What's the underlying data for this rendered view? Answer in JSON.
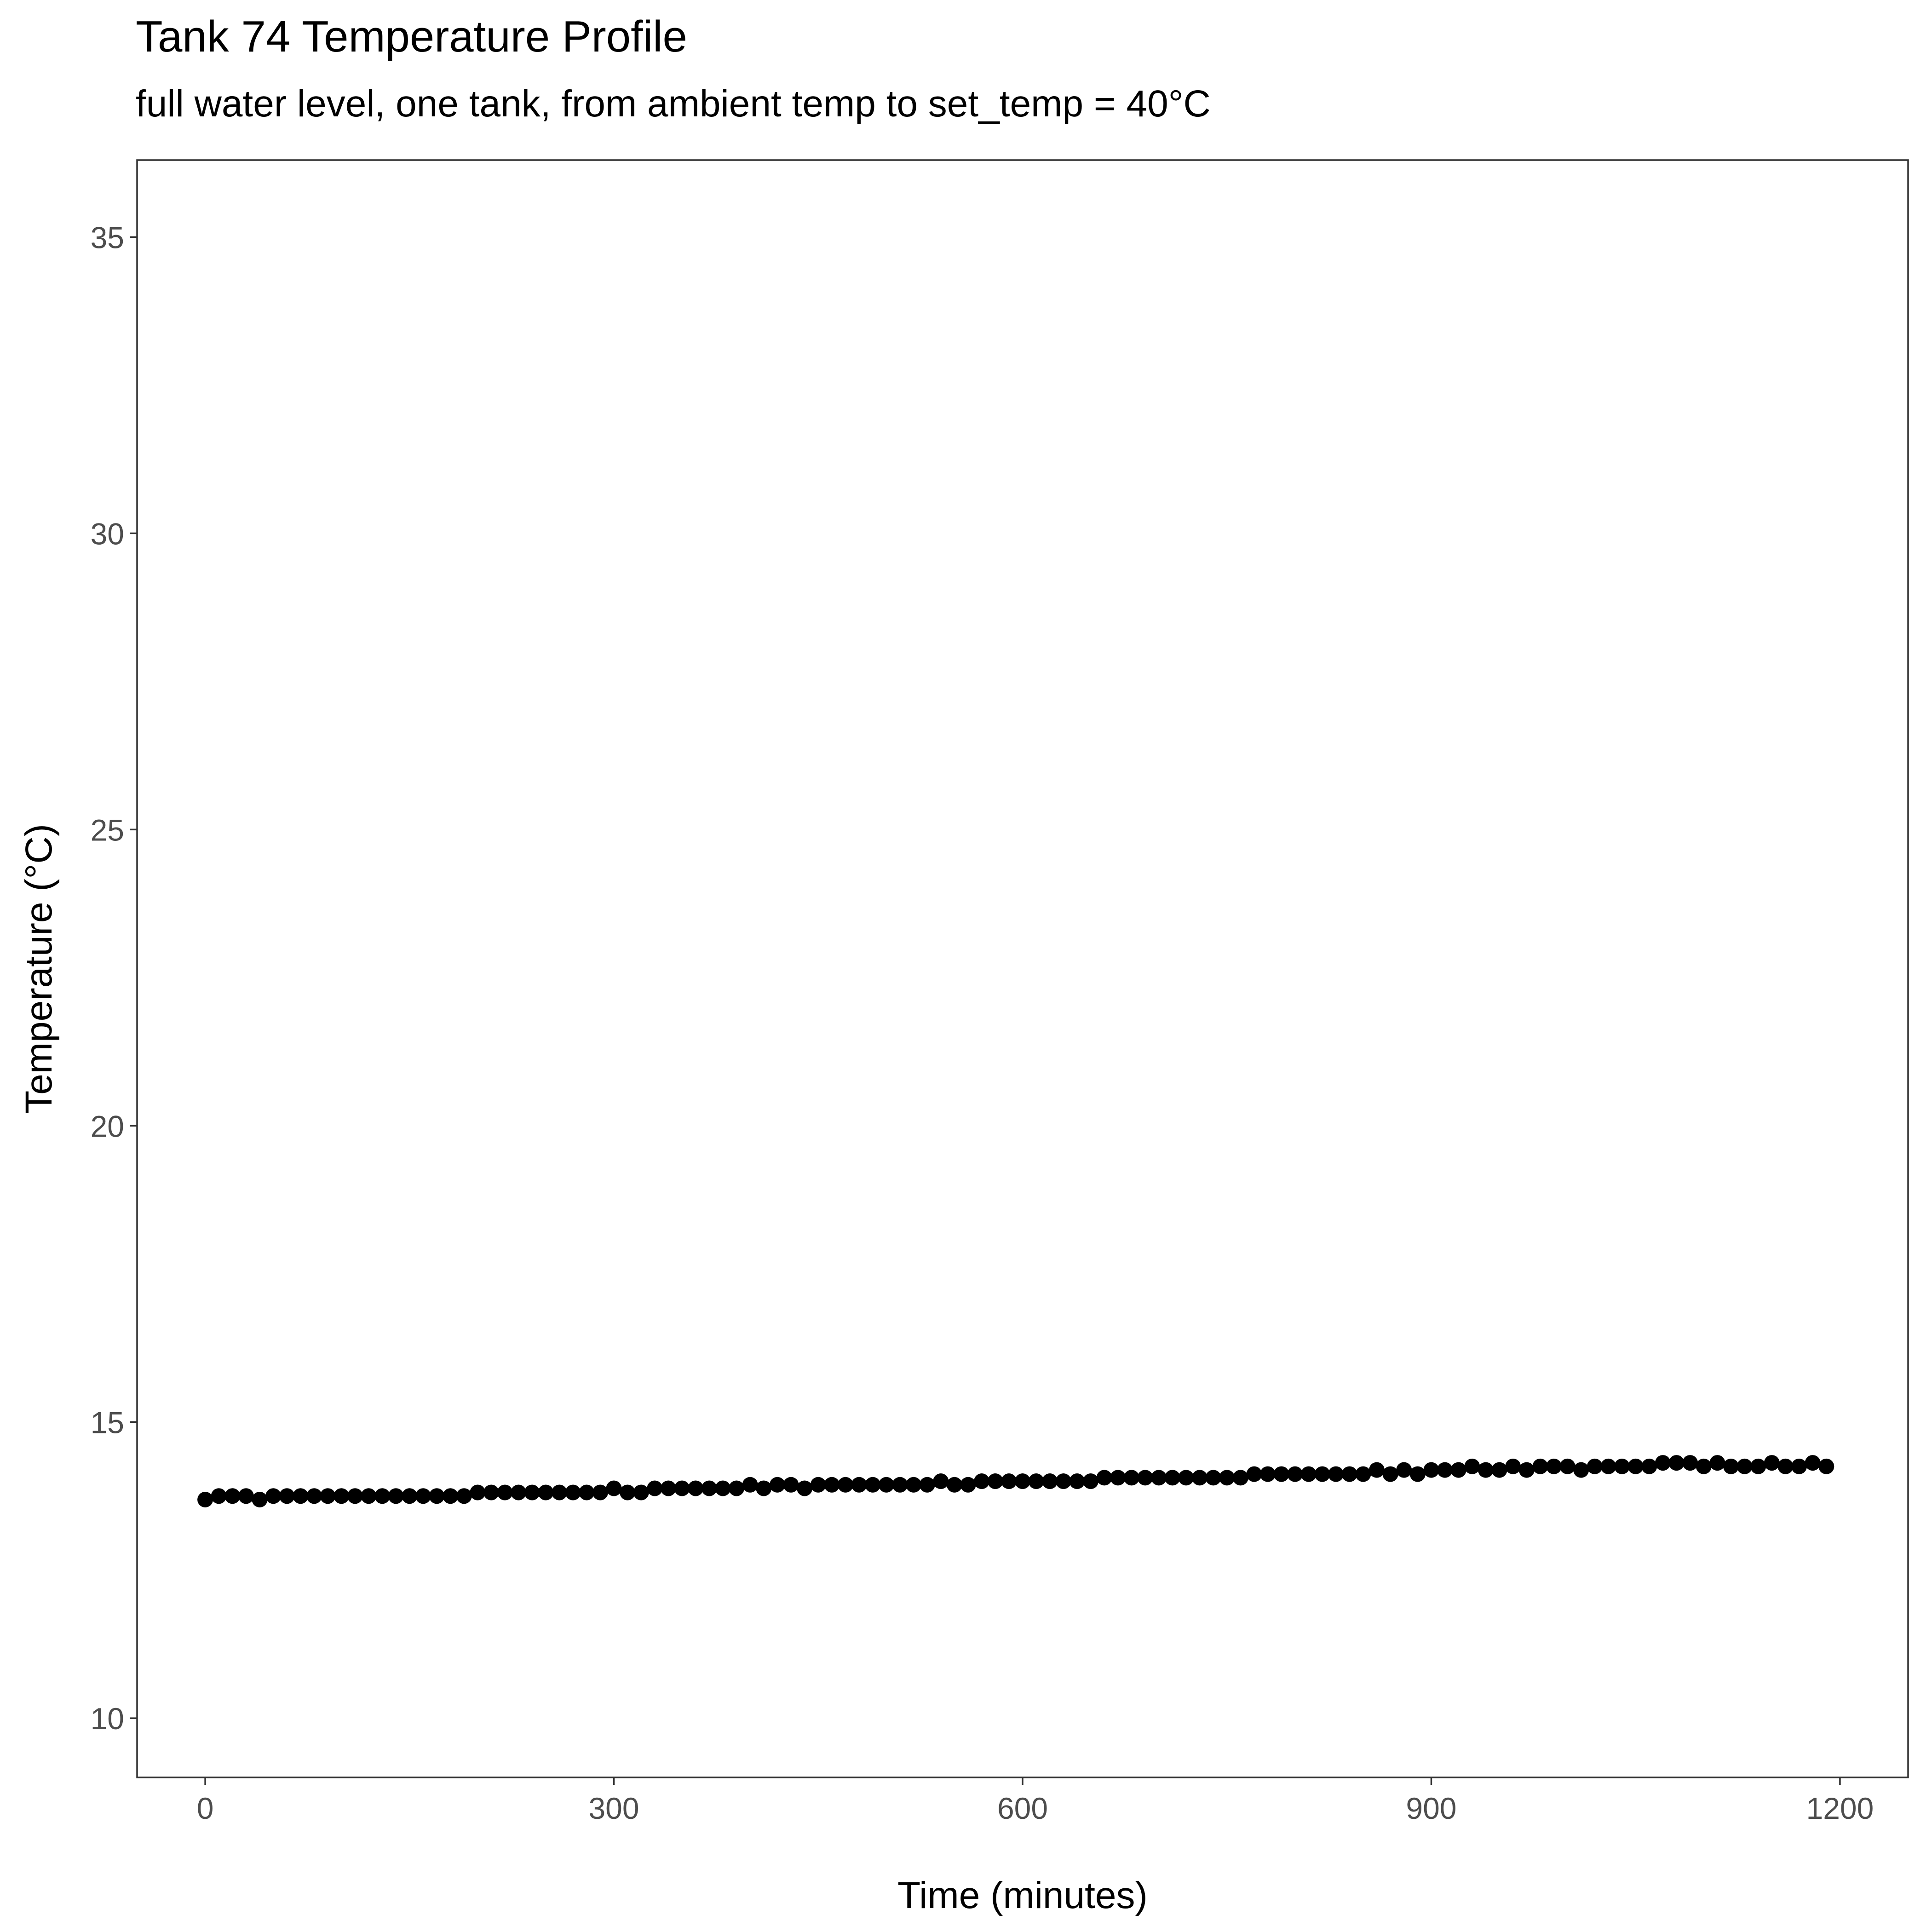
{
  "chart_data": {
    "type": "scatter",
    "title": "Tank 74 Temperature Profile",
    "subtitle": "full water level, one tank, from ambient temp to set_temp = 40°C",
    "xlabel": "Time (minutes)",
    "ylabel": "Temperature (°C)",
    "xlim": [
      -50,
      1250
    ],
    "ylim": [
      9,
      36.3
    ],
    "x_ticks": [
      0,
      300,
      600,
      900,
      1200
    ],
    "y_ticks": [
      10,
      15,
      20,
      25,
      30,
      35
    ],
    "x_tick_labels": [
      "0",
      "300",
      "600",
      "900",
      "1200"
    ],
    "y_tick_labels": [
      "10",
      "15",
      "20",
      "25",
      "30",
      "35"
    ],
    "grid": false,
    "legend": "none",
    "point_color": "#000000",
    "x": [
      0,
      10,
      20,
      30,
      40,
      50,
      60,
      70,
      80,
      90,
      100,
      110,
      120,
      130,
      140,
      150,
      160,
      170,
      180,
      190,
      200,
      210,
      220,
      230,
      240,
      250,
      260,
      270,
      280,
      290,
      300,
      310,
      320,
      330,
      340,
      350,
      360,
      370,
      380,
      390,
      400,
      410,
      420,
      430,
      440,
      450,
      460,
      470,
      480,
      490,
      500,
      510,
      520,
      530,
      540,
      550,
      560,
      570,
      580,
      590,
      600,
      610,
      620,
      630,
      640,
      650,
      660,
      670,
      680,
      690,
      700,
      710,
      720,
      730,
      740,
      750,
      760,
      770,
      780,
      790,
      800,
      810,
      820,
      830,
      840,
      850,
      860,
      870,
      880,
      890,
      900,
      910,
      920,
      930,
      940,
      950,
      960,
      970,
      980,
      990,
      1000,
      1010,
      1020,
      1030,
      1040,
      1050,
      1060,
      1070,
      1080,
      1090,
      1100,
      1110,
      1120,
      1130,
      1140,
      1150,
      1160,
      1170,
      1180,
      1190
    ],
    "y": [
      13.69,
      13.75,
      13.75,
      13.75,
      13.69,
      13.75,
      13.75,
      13.75,
      13.75,
      13.75,
      13.75,
      13.75,
      13.75,
      13.75,
      13.75,
      13.75,
      13.75,
      13.75,
      13.75,
      13.75,
      13.81,
      13.81,
      13.81,
      13.81,
      13.81,
      13.81,
      13.81,
      13.81,
      13.81,
      13.81,
      13.88,
      13.81,
      13.81,
      13.88,
      13.88,
      13.88,
      13.88,
      13.88,
      13.88,
      13.88,
      13.94,
      13.88,
      13.94,
      13.94,
      13.88,
      13.94,
      13.94,
      13.94,
      13.94,
      13.94,
      13.94,
      13.94,
      13.94,
      13.94,
      14.0,
      13.94,
      13.94,
      14.0,
      14.0,
      14.0,
      14.0,
      14.0,
      14.0,
      14.0,
      14.0,
      14.0,
      14.06,
      14.06,
      14.06,
      14.06,
      14.06,
      14.06,
      14.06,
      14.06,
      14.06,
      14.06,
      14.06,
      14.12,
      14.12,
      14.12,
      14.12,
      14.12,
      14.12,
      14.12,
      14.12,
      14.12,
      14.19,
      14.12,
      14.19,
      14.12,
      14.19,
      14.19,
      14.19,
      14.25,
      14.19,
      14.19,
      14.25,
      14.19,
      14.25,
      14.25,
      14.25,
      14.19,
      14.25,
      14.25,
      14.25,
      14.25,
      14.25,
      14.31,
      14.31,
      14.31,
      14.25,
      14.31,
      14.25,
      14.25,
      14.25,
      14.31,
      14.25,
      14.25,
      14.31,
      14.25
    ]
  }
}
